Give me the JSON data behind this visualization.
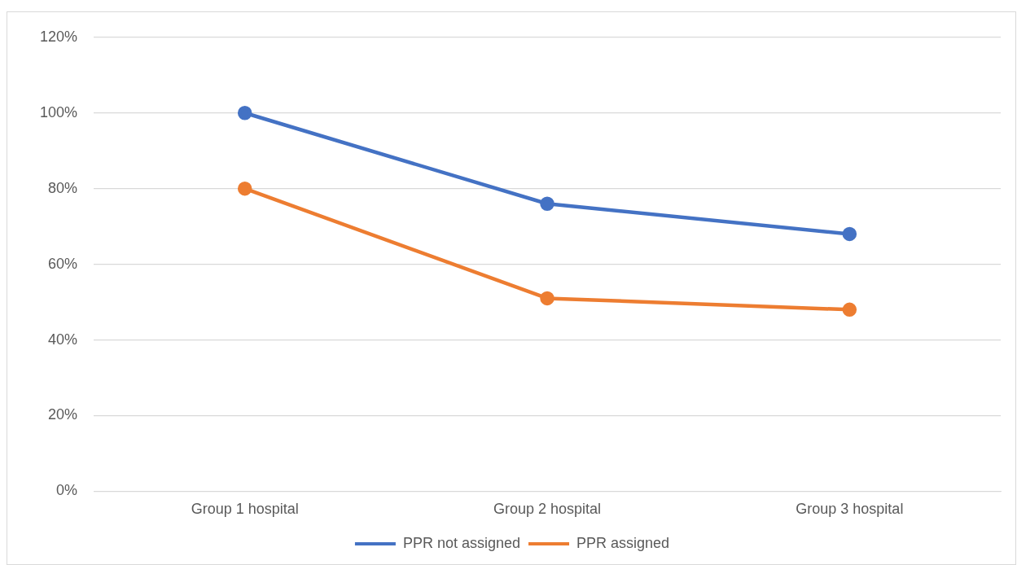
{
  "chart_data": {
    "type": "line",
    "categories": [
      "Group 1 hospital",
      "Group 2 hospital",
      "Group 3 hospital"
    ],
    "series": [
      {
        "name": "PPR not assigned",
        "color": "#4472c4",
        "values": [
          100,
          76,
          68
        ]
      },
      {
        "name": "PPR assigned",
        "color": "#ed7d31",
        "values": [
          80,
          51,
          48
        ]
      }
    ],
    "ylim": [
      0,
      120
    ],
    "yticks": [
      {
        "value": 0,
        "label": "0%"
      },
      {
        "value": 20,
        "label": "20%"
      },
      {
        "value": 40,
        "label": "40%"
      },
      {
        "value": 60,
        "label": "60%"
      },
      {
        "value": 80,
        "label": "80%"
      },
      {
        "value": 100,
        "label": "100%"
      },
      {
        "value": 120,
        "label": "120%"
      }
    ],
    "grid": "y",
    "legend": "bottom",
    "marker": "circle",
    "line_style": "solid"
  }
}
